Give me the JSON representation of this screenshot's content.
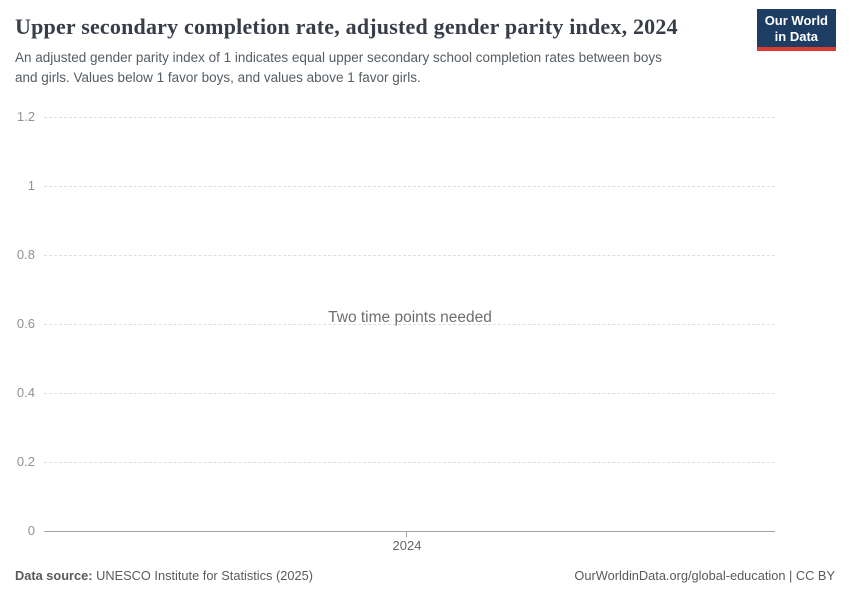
{
  "header": {
    "title": "Upper secondary completion rate, adjusted gender parity index, 2024",
    "subtitle": "An adjusted gender parity index of 1 indicates equal upper secondary school completion rates between boys\nand girls. Values below 1 favor boys, and values above 1 favor girls.",
    "logo": {
      "line1": "Our World",
      "line2": "in Data",
      "bg_color": "#1d3d63",
      "stripe_color": "#d93d32"
    }
  },
  "chart_data": {
    "type": "line",
    "title": "Upper secondary completion rate, adjusted gender parity index, 2024",
    "series": [],
    "x": [],
    "message": "Two time points needed",
    "xlabel": "",
    "ylabel": "",
    "xticks": [
      "2024"
    ],
    "yticks": [
      0,
      0.2,
      0.4,
      0.6,
      0.8,
      1,
      1.2
    ],
    "ytick_labels": [
      "0",
      "0.2",
      "0.4",
      "0.6",
      "0.8",
      "1",
      "1.2"
    ],
    "ylim": [
      0,
      1.2
    ],
    "grid": true,
    "legend": false
  },
  "footer": {
    "datasource_label": "Data source:",
    "datasource_value": " UNESCO Institute for Statistics (2025)",
    "link": "OurWorldinData.org/global-education | CC BY"
  }
}
